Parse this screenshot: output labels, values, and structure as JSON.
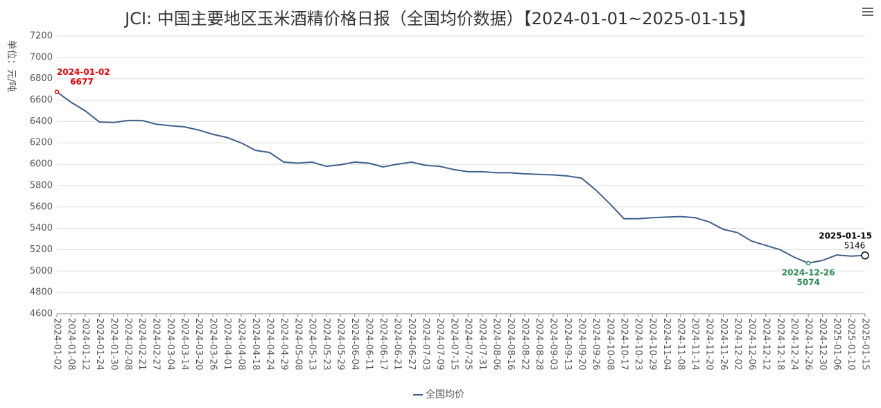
{
  "chart_data": {
    "type": "line",
    "title": "JCI: 中国主要地区玉米酒精价格日报（全国均价数据）【2024-01-01~2025-01-15】",
    "y_label": "单位：元/吨",
    "categories": [
      "2024-01-02",
      "2024-01-08",
      "2024-01-12",
      "2024-01-24",
      "2024-01-30",
      "2024-02-08",
      "2024-02-21",
      "2024-02-27",
      "2024-03-04",
      "2024-03-14",
      "2024-03-20",
      "2024-03-26",
      "2024-04-01",
      "2024-04-08",
      "2024-04-18",
      "2024-04-24",
      "2024-04-29",
      "2024-05-08",
      "2024-05-13",
      "2024-05-23",
      "2024-05-29",
      "2024-06-04",
      "2024-06-11",
      "2024-06-17",
      "2024-06-21",
      "2024-06-27",
      "2024-07-03",
      "2024-07-09",
      "2024-07-15",
      "2024-07-25",
      "2024-07-31",
      "2024-08-06",
      "2024-08-16",
      "2024-08-22",
      "2024-08-28",
      "2024-09-03",
      "2024-09-13",
      "2024-09-20",
      "2024-09-26",
      "2024-10-08",
      "2024-10-17",
      "2024-10-23",
      "2024-10-29",
      "2024-11-04",
      "2024-11-08",
      "2024-11-14",
      "2024-11-20",
      "2024-11-26",
      "2024-12-02",
      "2024-12-06",
      "2024-12-12",
      "2024-12-18",
      "2024-12-24",
      "2024-12-26",
      "2024-12-30",
      "2025-01-06",
      "2025-01-10",
      "2025-01-15"
    ],
    "series": [
      {
        "name": "全国均价",
        "color": "#3e5f8a",
        "values": [
          6677,
          6580,
          6500,
          6395,
          6390,
          6410,
          6410,
          6375,
          6360,
          6350,
          6320,
          6280,
          6250,
          6200,
          6130,
          6110,
          6020,
          6010,
          6020,
          5980,
          5995,
          6020,
          6010,
          5975,
          6000,
          6020,
          5990,
          5980,
          5950,
          5930,
          5930,
          5920,
          5920,
          5910,
          5905,
          5900,
          5890,
          5870,
          5760,
          5630,
          5490,
          5490,
          5500,
          5505,
          5510,
          5500,
          5460,
          5390,
          5360,
          5280,
          5240,
          5200,
          5130,
          5074,
          5100,
          5150,
          5140,
          5146
        ]
      }
    ],
    "highlights": [
      {
        "index": 0,
        "color": "#e60000"
      },
      {
        "index": 53,
        "color": "#2e8b57"
      },
      {
        "index": 57,
        "color": "#000000"
      }
    ],
    "ylim": [
      4600,
      7200
    ],
    "yticks": [
      4600,
      4800,
      5000,
      5200,
      5400,
      5600,
      5800,
      6000,
      6200,
      6400,
      6600,
      6800,
      7000,
      7200
    ],
    "grid": true
  }
}
